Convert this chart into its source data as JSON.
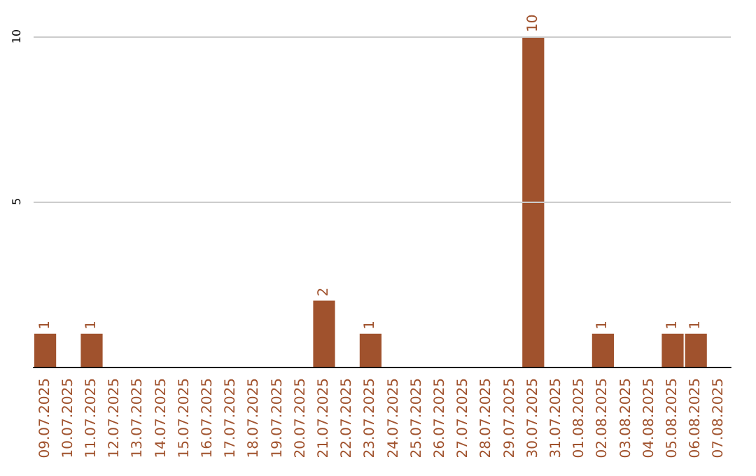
{
  "chart_data": {
    "type": "bar",
    "categories": [
      "09.07.2025",
      "10.07.2025",
      "11.07.2025",
      "12.07.2025",
      "13.07.2025",
      "14.07.2025",
      "15.07.2025",
      "16.07.2025",
      "17.07.2025",
      "18.07.2025",
      "19.07.2025",
      "20.07.2025",
      "21.07.2025",
      "22.07.2025",
      "23.07.2025",
      "24.07.2025",
      "25.07.2025",
      "26.07.2025",
      "27.07.2025",
      "28.07.2025",
      "29.07.2025",
      "30.07.2025",
      "31.07.2025",
      "01.08.2025",
      "02.08.2025",
      "03.08.2025",
      "04.08.2025",
      "05.08.2025",
      "06.08.2025",
      "07.08.2025"
    ],
    "values": [
      1,
      0,
      1,
      0,
      0,
      0,
      0,
      0,
      0,
      0,
      0,
      0,
      2,
      0,
      1,
      0,
      0,
      0,
      0,
      0,
      0,
      10,
      0,
      0,
      1,
      0,
      0,
      1,
      1,
      0
    ],
    "value_labels": [
      "1",
      null,
      "1",
      null,
      null,
      null,
      null,
      null,
      null,
      null,
      null,
      null,
      "2",
      null,
      "1",
      null,
      null,
      null,
      null,
      null,
      null,
      "10",
      null,
      null,
      "1",
      null,
      null,
      "1",
      "1",
      null
    ],
    "color": "#a0522d",
    "ylim": [
      0,
      10
    ],
    "yticks": [
      5,
      10
    ],
    "grid": "y"
  }
}
